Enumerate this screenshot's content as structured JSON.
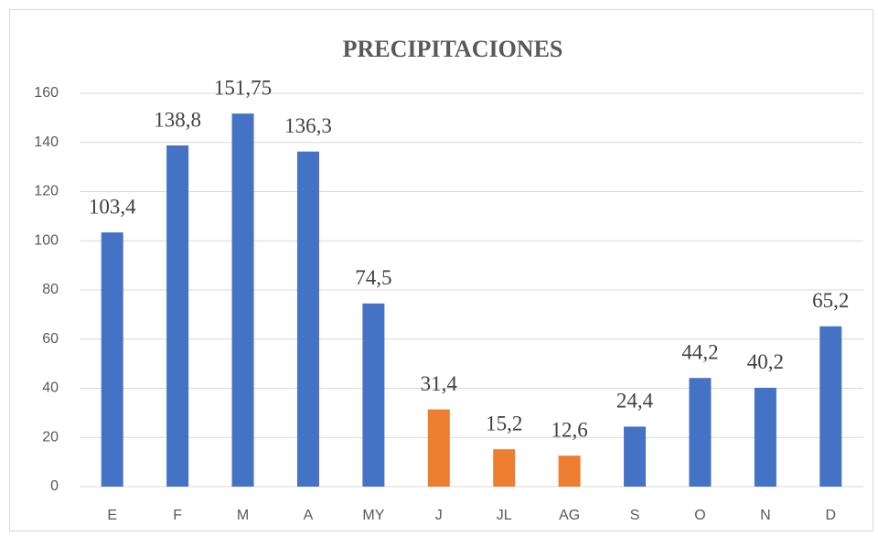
{
  "chart_data": {
    "type": "bar",
    "title": "PRECIPITACIONES",
    "categories": [
      "E",
      "F",
      "M",
      "A",
      "MY",
      "J",
      "JL",
      "AG",
      "S",
      "O",
      "N",
      "D"
    ],
    "values": [
      103.4,
      138.8,
      151.75,
      136.3,
      74.5,
      31.4,
      15.2,
      12.6,
      24.4,
      44.2,
      40.2,
      65.2
    ],
    "value_labels": [
      "103,4",
      "138,8",
      "151,75",
      "136,3",
      "74,5",
      "31,4",
      "15,2",
      "12,6",
      "24,4",
      "44,2",
      "40,2",
      "65,2"
    ],
    "colors": [
      "#4472c4",
      "#4472c4",
      "#4472c4",
      "#4472c4",
      "#4472c4",
      "#ed7d31",
      "#ed7d31",
      "#ed7d31",
      "#4472c4",
      "#4472c4",
      "#4472c4",
      "#4472c4"
    ],
    "ylim": [
      0,
      160
    ],
    "yticks": [
      0,
      20,
      40,
      60,
      80,
      100,
      120,
      140,
      160
    ],
    "grid": true
  }
}
